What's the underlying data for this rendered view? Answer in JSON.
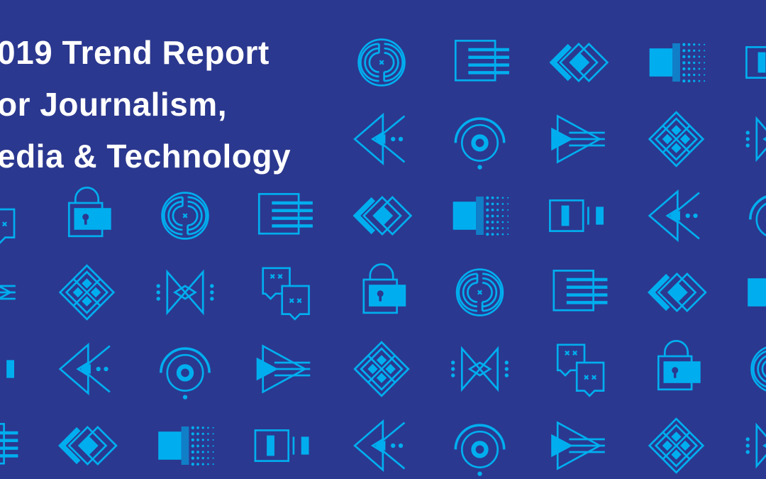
{
  "title": {
    "lines": [
      "019 Trend Report",
      "or Journalism,",
      "edia & Technology"
    ]
  },
  "colors": {
    "background": "#2b388f",
    "icon": "#00aeef",
    "text": "#ffffff"
  },
  "pattern": {
    "rows": [
      [
        null,
        null,
        null,
        null,
        "labyrinth-icon",
        "lines-box-icon",
        "stacked-diamonds-icon",
        "dot-gradient-icon",
        "bars-icon"
      ],
      [
        null,
        null,
        null,
        null,
        "arrow-left-icon",
        "target-icon",
        "arrow-right-icon",
        "grid-diamond-icon",
        "bowtie-icon"
      ],
      [
        "chat-icon",
        "lock-icon",
        "labyrinth-icon",
        "lines-box-icon",
        "stacked-diamonds-icon",
        "dot-gradient-icon",
        "bars-icon",
        "arrow-left-icon",
        "target-icon"
      ],
      [
        "arrow-right-icon",
        "grid-diamond-icon",
        "bowtie-icon",
        "chat-icon",
        "lock-icon",
        "labyrinth-icon",
        "lines-box-icon",
        "stacked-diamonds-icon",
        "dot-gradient-icon"
      ],
      [
        "bars-icon",
        "arrow-left-icon",
        "target-icon",
        "arrow-right-icon",
        "grid-diamond-icon",
        "bowtie-icon",
        "chat-icon",
        "lock-icon",
        "labyrinth-icon"
      ],
      [
        "lines-box-icon",
        "stacked-diamonds-icon",
        "dot-gradient-icon",
        "bars-icon",
        "arrow-left-icon",
        "target-icon",
        "arrow-right-icon",
        "grid-diamond-icon",
        "bowtie-icon"
      ]
    ]
  }
}
